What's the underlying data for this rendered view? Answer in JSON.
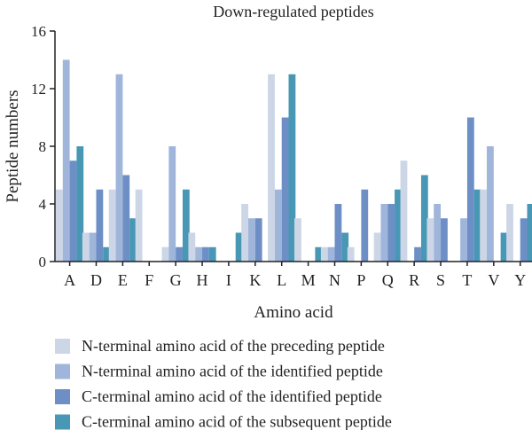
{
  "chart_data": {
    "type": "bar",
    "title": "Down-regulated peptides",
    "xlabel": "Amino acid",
    "ylabel": "Peptide numbers",
    "ylim": [
      0,
      16
    ],
    "yticks": [
      "0",
      "4",
      "8",
      "12",
      "16"
    ],
    "grid": false,
    "legend_position": "bottom",
    "categories": [
      "A",
      "D",
      "E",
      "F",
      "G",
      "H",
      "I",
      "K",
      "L",
      "M",
      "N",
      "P",
      "Q",
      "R",
      "S",
      "T",
      "V",
      "Y"
    ],
    "series": [
      {
        "name": "N-terminal amino acid of the preceding peptide",
        "color": "#ccd6e6",
        "values": [
          5,
          2,
          5,
          5,
          1,
          2,
          0,
          4,
          13,
          3,
          1,
          1,
          2,
          7,
          3,
          0,
          5,
          4
        ]
      },
      {
        "name": "N-terminal amino acid of the identified peptide",
        "color": "#9fb5da",
        "values": [
          14,
          2,
          13,
          0,
          8,
          1,
          0,
          3,
          5,
          0,
          1,
          0,
          4,
          0,
          4,
          3,
          8,
          0
        ]
      },
      {
        "name": "C-terminal amino acid of the identified peptide",
        "color": "#6d8fc6",
        "values": [
          7,
          5,
          6,
          0,
          1,
          1,
          0,
          3,
          10,
          0,
          4,
          5,
          4,
          1,
          3,
          10,
          0,
          3
        ]
      },
      {
        "name": "C-terminal amino acid of the subsequent peptide",
        "color": "#4797b5",
        "values": [
          8,
          1,
          3,
          0,
          5,
          1,
          2,
          0,
          13,
          1,
          2,
          0,
          5,
          6,
          0,
          5,
          2,
          4
        ]
      }
    ]
  }
}
